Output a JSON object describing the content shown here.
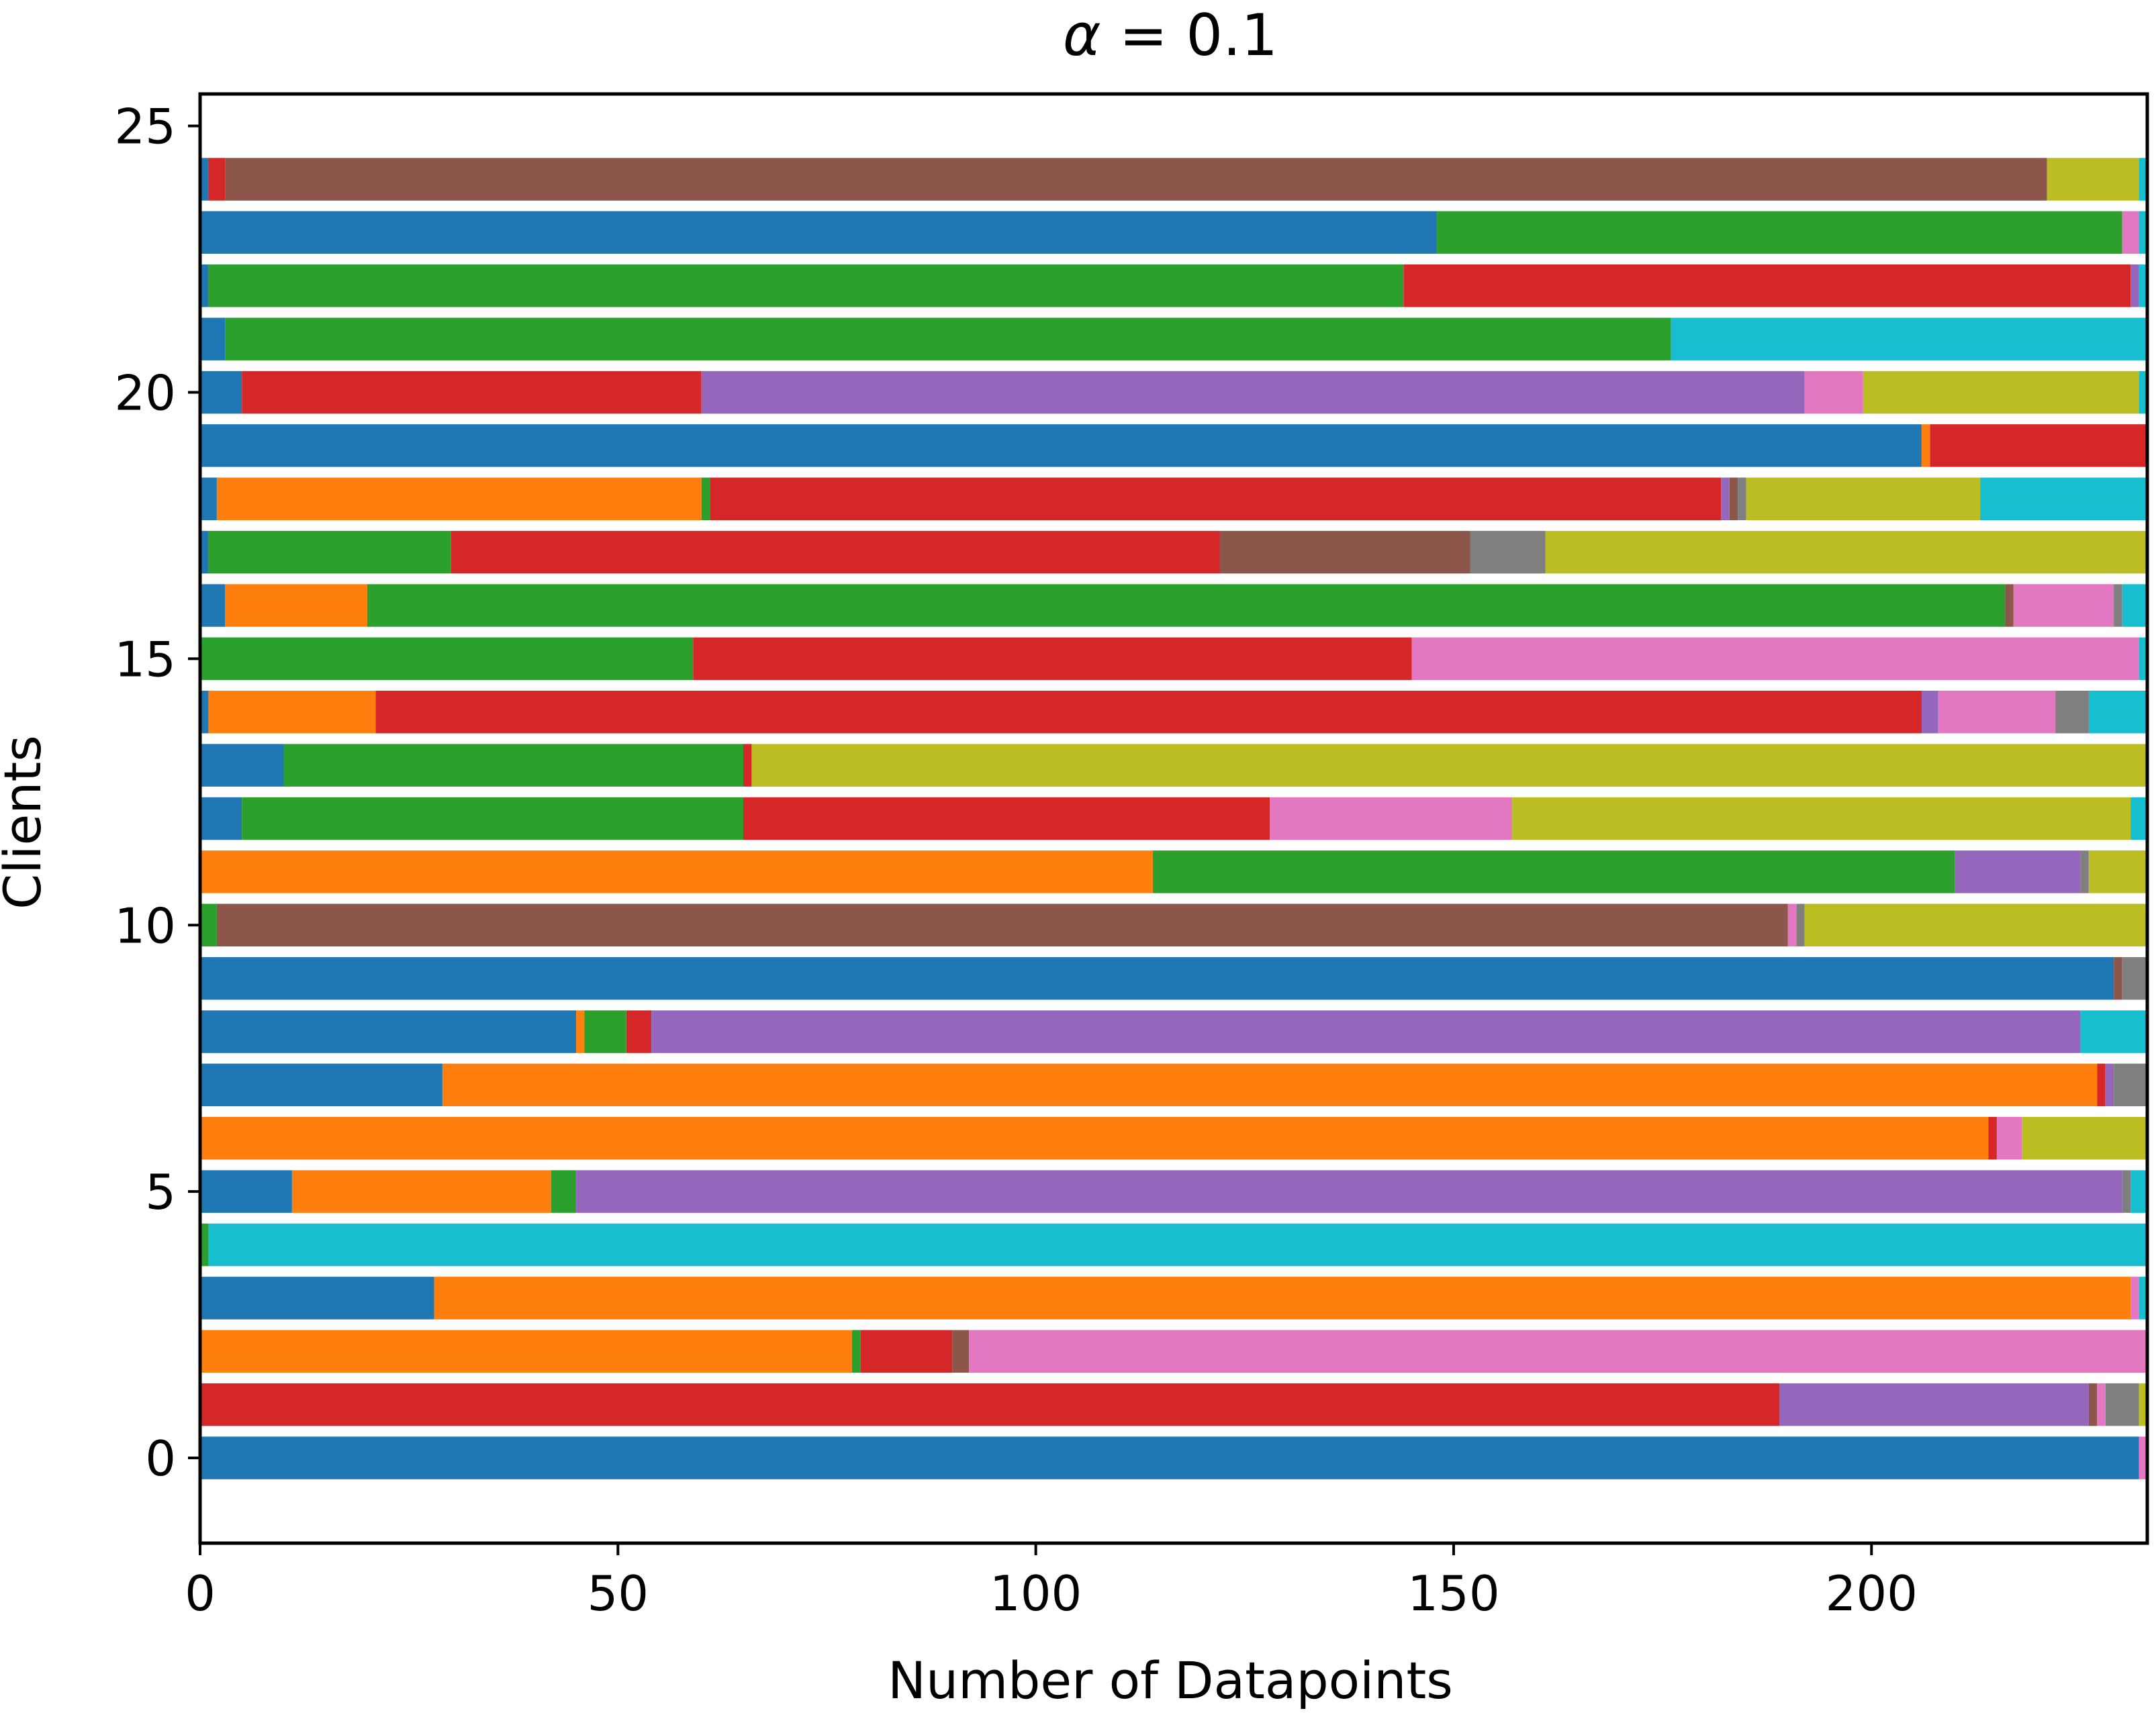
{
  "chart_data": {
    "type": "bar",
    "orientation": "horizontal",
    "stacked": true,
    "title": "α = 0.1",
    "title_parts": {
      "symbol": "α",
      "rest": " = 0.1"
    },
    "xlabel": "Number of Datapoints",
    "ylabel": "Clients",
    "xlim": [
      0,
      233
    ],
    "ylim": [
      -1.6,
      25.6
    ],
    "xticks": [
      0,
      50,
      100,
      150,
      200
    ],
    "xtick_labels": [
      "0",
      "50",
      "100",
      "150",
      "200"
    ],
    "yticks": [
      0,
      5,
      10,
      15,
      20,
      25
    ],
    "ytick_labels": [
      "0",
      "5",
      "10",
      "15",
      "20",
      "25"
    ],
    "grid": false,
    "legend": "none",
    "class_colors": [
      "#1f77b4",
      "#ff7f0e",
      "#2ca02c",
      "#d62728",
      "#9467bd",
      "#8c564b",
      "#e377c2",
      "#7f7f7f",
      "#bcbd22",
      "#17becf"
    ],
    "clients": [
      {
        "client": 0,
        "counts": [
          232,
          0,
          0,
          0,
          0,
          0,
          1,
          0,
          0,
          0
        ]
      },
      {
        "client": 1,
        "counts": [
          0,
          0,
          0,
          189,
          37,
          1,
          1,
          4,
          1,
          0
        ]
      },
      {
        "client": 2,
        "counts": [
          0,
          78,
          1,
          11,
          0,
          2,
          141,
          0,
          0,
          0
        ]
      },
      {
        "client": 3,
        "counts": [
          28,
          203,
          0,
          0,
          0,
          0,
          1,
          0,
          0,
          1
        ]
      },
      {
        "client": 4,
        "counts": [
          0,
          0,
          1,
          0,
          0,
          0,
          0,
          0,
          0,
          232
        ]
      },
      {
        "client": 5,
        "counts": [
          11,
          31,
          3,
          0,
          185,
          0,
          0,
          1,
          0,
          2
        ]
      },
      {
        "client": 6,
        "counts": [
          0,
          214,
          0,
          1,
          0,
          0,
          3,
          0,
          15,
          0
        ]
      },
      {
        "client": 7,
        "counts": [
          29,
          198,
          0,
          1,
          1,
          0,
          0,
          4,
          0,
          0
        ]
      },
      {
        "client": 8,
        "counts": [
          45,
          1,
          5,
          3,
          171,
          0,
          0,
          0,
          0,
          8
        ]
      },
      {
        "client": 9,
        "counts": [
          229,
          0,
          0,
          0,
          0,
          1,
          0,
          3,
          0,
          0
        ]
      },
      {
        "client": 10,
        "counts": [
          0,
          0,
          2,
          0,
          0,
          188,
          1,
          1,
          41,
          0
        ]
      },
      {
        "client": 11,
        "counts": [
          0,
          114,
          96,
          0,
          15,
          0,
          0,
          1,
          7,
          0
        ]
      },
      {
        "client": 12,
        "counts": [
          5,
          0,
          60,
          63,
          0,
          0,
          29,
          0,
          74,
          2
        ]
      },
      {
        "client": 13,
        "counts": [
          10,
          0,
          55,
          1,
          0,
          0,
          0,
          0,
          167,
          0
        ]
      },
      {
        "client": 14,
        "counts": [
          1,
          20,
          0,
          185,
          2,
          0,
          14,
          4,
          0,
          7
        ]
      },
      {
        "client": 15,
        "counts": [
          0,
          0,
          59,
          86,
          0,
          0,
          87,
          0,
          0,
          1
        ]
      },
      {
        "client": 16,
        "counts": [
          3,
          17,
          196,
          0,
          0,
          1,
          12,
          1,
          0,
          3
        ]
      },
      {
        "client": 17,
        "counts": [
          1,
          0,
          29,
          92,
          0,
          30,
          0,
          9,
          72,
          0
        ]
      },
      {
        "client": 18,
        "counts": [
          2,
          58,
          1,
          121,
          1,
          1,
          0,
          1,
          28,
          20
        ]
      },
      {
        "client": 19,
        "counts": [
          206,
          1,
          0,
          26,
          0,
          0,
          0,
          0,
          0,
          0
        ]
      },
      {
        "client": 20,
        "counts": [
          5,
          0,
          0,
          55,
          132,
          0,
          7,
          0,
          33,
          1
        ]
      },
      {
        "client": 21,
        "counts": [
          3,
          0,
          173,
          0,
          0,
          0,
          0,
          0,
          0,
          57
        ]
      },
      {
        "client": 22,
        "counts": [
          1,
          0,
          143,
          87,
          1,
          0,
          0,
          0,
          0,
          1
        ]
      },
      {
        "client": 23,
        "counts": [
          148,
          0,
          82,
          0,
          0,
          0,
          2,
          0,
          0,
          1
        ]
      },
      {
        "client": 24,
        "counts": [
          1,
          0,
          0,
          2,
          0,
          218,
          0,
          0,
          11,
          1
        ]
      }
    ]
  }
}
